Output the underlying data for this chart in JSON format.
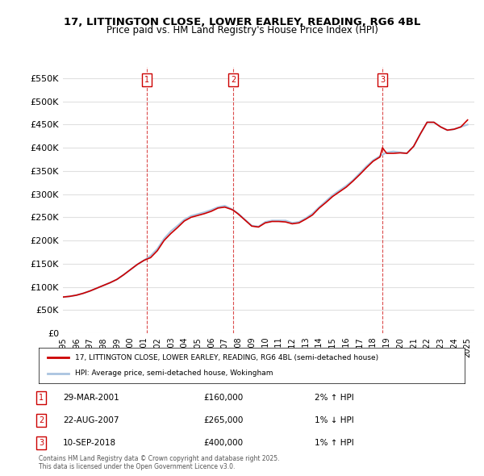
{
  "title": "17, LITTINGTON CLOSE, LOWER EARLEY, READING, RG6 4BL",
  "subtitle": "Price paid vs. HM Land Registry's House Price Index (HPI)",
  "ylabel_ticks": [
    0,
    50000,
    100000,
    150000,
    200000,
    250000,
    300000,
    350000,
    400000,
    450000,
    500000,
    550000
  ],
  "ylabel_labels": [
    "£0",
    "£50K",
    "£100K",
    "£150K",
    "£200K",
    "£250K",
    "£300K",
    "£350K",
    "£400K",
    "£450K",
    "£500K",
    "£550K"
  ],
  "ylim": [
    0,
    575000
  ],
  "xlim_start": 1995.0,
  "xlim_end": 2025.5,
  "hpi_color": "#aac4e0",
  "price_color": "#cc0000",
  "background_color": "#ffffff",
  "grid_color": "#e0e0e0",
  "legend_label_price": "17, LITTINGTON CLOSE, LOWER EARLEY, READING, RG6 4BL (semi-detached house)",
  "legend_label_hpi": "HPI: Average price, semi-detached house, Wokingham",
  "sale1_date": "29-MAR-2001",
  "sale1_price": 160000,
  "sale1_hpi_pct": "2% ↑ HPI",
  "sale1_year": 2001.24,
  "sale2_date": "22-AUG-2007",
  "sale2_price": 265000,
  "sale2_hpi_pct": "1% ↓ HPI",
  "sale2_year": 2007.64,
  "sale3_date": "10-SEP-2018",
  "sale3_price": 400000,
  "sale3_hpi_pct": "1% ↑ HPI",
  "sale3_year": 2018.69,
  "footer": "Contains HM Land Registry data © Crown copyright and database right 2025.\nThis data is licensed under the Open Government Licence v3.0.",
  "hpi_years": [
    1995.0,
    1995.5,
    1996.0,
    1996.5,
    1997.0,
    1997.5,
    1998.0,
    1998.5,
    1999.0,
    1999.5,
    2000.0,
    2000.5,
    2001.0,
    2001.5,
    2002.0,
    2002.5,
    2003.0,
    2003.5,
    2004.0,
    2004.5,
    2005.0,
    2005.5,
    2006.0,
    2006.5,
    2007.0,
    2007.5,
    2008.0,
    2008.5,
    2009.0,
    2009.5,
    2010.0,
    2010.5,
    2011.0,
    2011.5,
    2012.0,
    2012.5,
    2013.0,
    2013.5,
    2014.0,
    2014.5,
    2015.0,
    2015.5,
    2016.0,
    2016.5,
    2017.0,
    2017.5,
    2018.0,
    2018.5,
    2019.0,
    2019.5,
    2020.0,
    2020.5,
    2021.0,
    2021.5,
    2022.0,
    2022.5,
    2023.0,
    2023.5,
    2024.0,
    2024.5,
    2025.0
  ],
  "hpi_values": [
    78000,
    79500,
    82000,
    86000,
    91000,
    97000,
    103000,
    109000,
    116000,
    126000,
    137000,
    148000,
    157000,
    167000,
    182000,
    204000,
    220000,
    232000,
    245000,
    253000,
    257000,
    261000,
    266000,
    272000,
    275000,
    268000,
    258000,
    245000,
    232000,
    230000,
    240000,
    243000,
    243000,
    243000,
    238000,
    240000,
    248000,
    258000,
    272000,
    285000,
    298000,
    308000,
    318000,
    330000,
    345000,
    360000,
    373000,
    382000,
    390000,
    392000,
    390000,
    388000,
    403000,
    430000,
    455000,
    455000,
    445000,
    438000,
    440000,
    445000,
    450000
  ],
  "price_years": [
    1995.0,
    1995.5,
    1996.0,
    1996.5,
    1997.0,
    1997.5,
    1998.0,
    1998.5,
    1999.0,
    1999.5,
    2000.0,
    2000.5,
    2001.0,
    2001.24,
    2001.5,
    2002.0,
    2002.5,
    2003.0,
    2003.5,
    2004.0,
    2004.5,
    2005.0,
    2005.5,
    2006.0,
    2006.5,
    2007.0,
    2007.5,
    2007.64,
    2008.0,
    2008.5,
    2009.0,
    2009.5,
    2010.0,
    2010.5,
    2011.0,
    2011.5,
    2012.0,
    2012.5,
    2013.0,
    2013.5,
    2014.0,
    2014.5,
    2015.0,
    2015.5,
    2016.0,
    2016.5,
    2017.0,
    2017.5,
    2018.0,
    2018.5,
    2018.69,
    2019.0,
    2019.5,
    2020.0,
    2020.5,
    2021.0,
    2021.5,
    2022.0,
    2022.5,
    2023.0,
    2023.5,
    2024.0,
    2024.5,
    2025.0
  ],
  "price_values": [
    78000,
    79500,
    82000,
    86000,
    91000,
    97000,
    103000,
    109000,
    116000,
    126000,
    137000,
    148000,
    157000,
    160000,
    163000,
    178000,
    200000,
    215000,
    228000,
    242000,
    250000,
    254000,
    258000,
    263000,
    270000,
    272000,
    267000,
    265000,
    257000,
    244000,
    231000,
    229000,
    238000,
    241000,
    241000,
    240000,
    236000,
    238000,
    246000,
    255000,
    270000,
    282000,
    295000,
    305000,
    315000,
    328000,
    342000,
    357000,
    371000,
    380000,
    400000,
    388000,
    388000,
    389000,
    388000,
    403000,
    430000,
    455000,
    455000,
    445000,
    438000,
    440000,
    445000,
    460000
  ]
}
